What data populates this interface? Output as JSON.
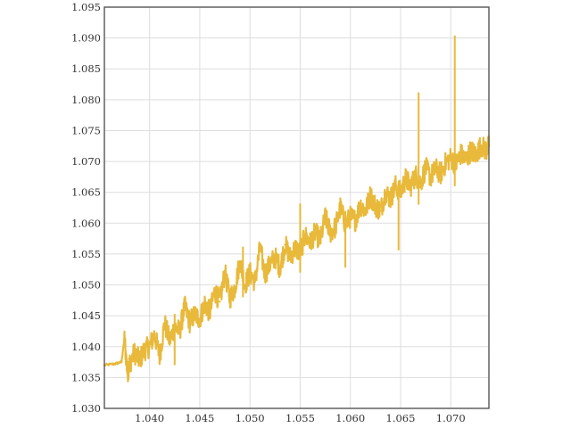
{
  "chart_data": {
    "type": "line",
    "title": "",
    "xlabel": "",
    "ylabel": "",
    "xlim": [
      1.0355,
      1.0738
    ],
    "ylim": [
      1.03,
      1.095
    ],
    "x_ticks": [
      1.04,
      1.045,
      1.05,
      1.055,
      1.06,
      1.065,
      1.07
    ],
    "x_tick_labels": [
      "1.040",
      "1.045",
      "1.050",
      "1.055",
      "1.060",
      "1.065",
      "1.070"
    ],
    "y_ticks": [
      1.03,
      1.035,
      1.04,
      1.045,
      1.05,
      1.055,
      1.06,
      1.065,
      1.07,
      1.075,
      1.08,
      1.085,
      1.09,
      1.095
    ],
    "y_tick_labels": [
      "1.030",
      "1.035",
      "1.040",
      "1.045",
      "1.050",
      "1.055",
      "1.060",
      "1.065",
      "1.070",
      "1.075",
      "1.080",
      "1.085",
      "1.090",
      "1.095"
    ],
    "grid": true,
    "series": [
      {
        "color": "#e8b93a",
        "x": [
          1.0355,
          1.0365,
          1.0372,
          1.0375,
          1.0378,
          1.038,
          1.0385,
          1.039,
          1.0395,
          1.04,
          1.0405,
          1.041,
          1.0415,
          1.042,
          1.0425,
          1.043,
          1.0435,
          1.044,
          1.0445,
          1.045,
          1.0455,
          1.046,
          1.0465,
          1.047,
          1.0475,
          1.048,
          1.0485,
          1.049,
          1.0495,
          1.05,
          1.0505,
          1.051,
          1.0515,
          1.052,
          1.0525,
          1.053,
          1.0535,
          1.054,
          1.0545,
          1.055,
          1.0555,
          1.056,
          1.0565,
          1.057,
          1.0575,
          1.058,
          1.0585,
          1.059,
          1.0595,
          1.06,
          1.0605,
          1.061,
          1.0615,
          1.062,
          1.0625,
          1.063,
          1.0635,
          1.064,
          1.0645,
          1.065,
          1.0655,
          1.066,
          1.0665,
          1.067,
          1.0675,
          1.068,
          1.0685,
          1.069,
          1.0695,
          1.07,
          1.0705,
          1.071,
          1.0715,
          1.072,
          1.0725,
          1.073,
          1.0735,
          1.0738
        ],
        "y": [
          1.037,
          1.0372,
          1.0375,
          1.0413,
          1.0358,
          1.0372,
          1.039,
          1.0378,
          1.0395,
          1.04,
          1.042,
          1.0385,
          1.0438,
          1.041,
          1.0432,
          1.0425,
          1.0465,
          1.044,
          1.0452,
          1.0445,
          1.047,
          1.0455,
          1.049,
          1.0473,
          1.052,
          1.0478,
          1.0496,
          1.0538,
          1.05,
          1.052,
          1.0505,
          1.056,
          1.0518,
          1.0534,
          1.0545,
          1.0528,
          1.0565,
          1.0545,
          1.056,
          1.0552,
          1.058,
          1.0568,
          1.0585,
          1.0572,
          1.061,
          1.0585,
          1.0593,
          1.0625,
          1.0598,
          1.061,
          1.0605,
          1.063,
          1.062,
          1.0645,
          1.0628,
          1.062,
          1.065,
          1.064,
          1.066,
          1.065,
          1.0672,
          1.066,
          1.0678,
          1.0665,
          1.069,
          1.0675,
          1.0688,
          1.068,
          1.0698,
          1.0706,
          1.0695,
          1.0712,
          1.0702,
          1.0718,
          1.071,
          1.0726,
          1.0718,
          1.0725
        ]
      }
    ],
    "annotations_spikes": [
      {
        "x": 1.0425,
        "y_low": 1.037,
        "y_high": 1.0453
      },
      {
        "x": 1.0493,
        "y_low": 1.048,
        "y_high": 1.0562
      },
      {
        "x": 1.055,
        "y_low": 1.052,
        "y_high": 1.0632
      },
      {
        "x": 1.0595,
        "y_low": 1.0528,
        "y_high": 1.062
      },
      {
        "x": 1.0648,
        "y_low": 1.0556,
        "y_high": 1.0658
      },
      {
        "x": 1.0668,
        "y_low": 1.063,
        "y_high": 1.0812
      },
      {
        "x": 1.0704,
        "y_low": 1.066,
        "y_high": 1.0904
      }
    ]
  }
}
